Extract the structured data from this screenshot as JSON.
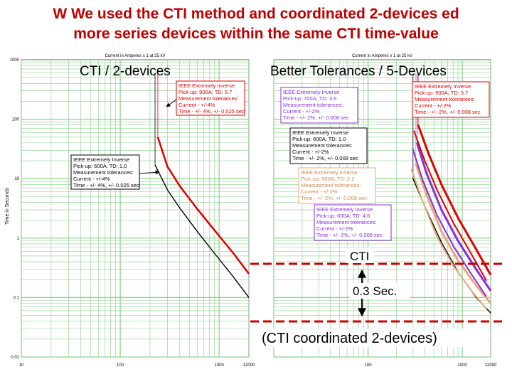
{
  "slide": {
    "title_line1": "W We used the CTI method and coordinated 2-devices ed",
    "title_line2": "more series devices within the same CTI time-value"
  },
  "colors": {
    "title": "#c00000",
    "red_curve": "#e00000",
    "purple_curve": "#8a2be2",
    "tan_curve": "#e8a878",
    "black_curve": "#000000",
    "label_blue": "#0000cc",
    "grid": "#8ad08a",
    "plot_bg": "#ffffff"
  },
  "chart_data": [
    {
      "type": "line",
      "title": "Current in Amperes x 1 at 25 kV",
      "overlay_title": "CTI / 2-devices",
      "xlabel": "",
      "ylabel": "Time in Seconds",
      "xscale": "log",
      "yscale": "log",
      "xlim": [
        10,
        2000
      ],
      "ylim": [
        0.01,
        1000
      ],
      "x_ticks": [
        "10",
        "100",
        "1000",
        "12000"
      ],
      "y_ticks": [
        "1000",
        "100",
        "10",
        "1",
        "0.1",
        "0.01"
      ],
      "grid": true,
      "series": [
        {
          "curve": "black",
          "x": [
            225,
            300,
            400,
            600,
            900,
            1400,
            2000
          ],
          "y": [
            17.0,
            6.5,
            3.2,
            1.3,
            0.55,
            0.22,
            0.1
          ]
        },
        {
          "curve": "red",
          "x": [
            240,
            300,
            400,
            600,
            900,
            1400,
            2000
          ],
          "y": [
            50.0,
            16.0,
            7.5,
            3.1,
            1.35,
            0.55,
            0.25
          ]
        }
      ],
      "labels": [
        {
          "lines": [
            "IEEE Extremely Inverse",
            "Pick-up: 900A; TD: 5.7",
            "Measurement tolerances:",
            "Current - +/-4%",
            "Time - +/- 4%, +/- 0.025 sec"
          ],
          "color": "red"
        },
        {
          "lines": [
            "IEEE Extremely Inverse",
            "Pick-up: 600A; TD: 1.0",
            "Measurement tolerances:",
            "Current - +/-4%",
            "Time - +/- 4%, +/- 0.025 sec"
          ],
          "color": "black"
        }
      ]
    },
    {
      "type": "line",
      "title": "Current in Amperes x 1 at 25 kV",
      "overlay_title": "Better Tolerances / 5-Devices",
      "xscale": "log",
      "yscale": "log",
      "xlim": [
        10,
        2000
      ],
      "ylim": [
        0.01,
        1000
      ],
      "x_ticks": [
        "100",
        "1000",
        "12000"
      ],
      "grid": true,
      "series": [
        {
          "curve": "black",
          "x": [
            300,
            400,
            600,
            900,
            1400,
            2000
          ],
          "y": [
            10.0,
            3.4,
            0.85,
            0.27,
            0.1,
            0.055
          ]
        },
        {
          "curve": "tan",
          "x": [
            320,
            420,
            600,
            900,
            1400,
            2000
          ],
          "y": [
            18.0,
            5.2,
            1.3,
            0.42,
            0.16,
            0.08
          ]
        },
        {
          "curve": "purple",
          "x": [
            330,
            420,
            600,
            900,
            1400,
            2000
          ],
          "y": [
            40.0,
            12.0,
            3.0,
            0.9,
            0.3,
            0.13
          ]
        },
        {
          "curve": "red",
          "x": [
            340,
            440,
            600,
            900,
            1400,
            2000
          ],
          "y": [
            80.0,
            26.0,
            8.0,
            2.2,
            0.65,
            0.24
          ]
        }
      ],
      "labels": [
        {
          "lines": [
            "IEEE Extremely Inverse",
            "Pick-up: 900A; TD: 5.7",
            "Measurement tolerances:",
            "Current - +/-2%",
            "Time - +/- 2%, +/- 0.008 sec"
          ],
          "color": "red"
        },
        {
          "lines": [
            "IEEE Extremely Inverse",
            "Pick-up: 700A; TD: 3.6",
            "Measurement tolerances:",
            "Current - +/-2%",
            "Time - +/- 2%, +/- 0.008 sec"
          ],
          "color": "purple"
        },
        {
          "lines": [
            "IEEE Extremely Inverse",
            "Pick-up: 600A; TD: 1.0",
            "Measurement tolerances:",
            "Current - +/-2%",
            "Time - +/- 2%, +/- 0.008 sec"
          ],
          "color": "black"
        },
        {
          "lines": [
            "IEEE Extremely Inverse",
            "Pick-up: 500A; TD: 2.2",
            "Measurement tolerances:",
            "Current - +/-2%",
            "Time - +/- 2%, +/- 0.008 sec"
          ],
          "color": "tan"
        },
        {
          "lines": [
            "IEEE Extremely Inverse",
            "Pick-up: 600A; TD: 4.6",
            "Measurement tolerances:",
            "Current - +/-2%",
            "Time - +/- 2%, +/- 0.008 sec"
          ],
          "color": "purple"
        }
      ]
    }
  ],
  "annotations": {
    "cti_label": "CTI",
    "cti_value": "0.3 Sec.",
    "cti_note": "(CTI coordinated 2-devices)"
  }
}
